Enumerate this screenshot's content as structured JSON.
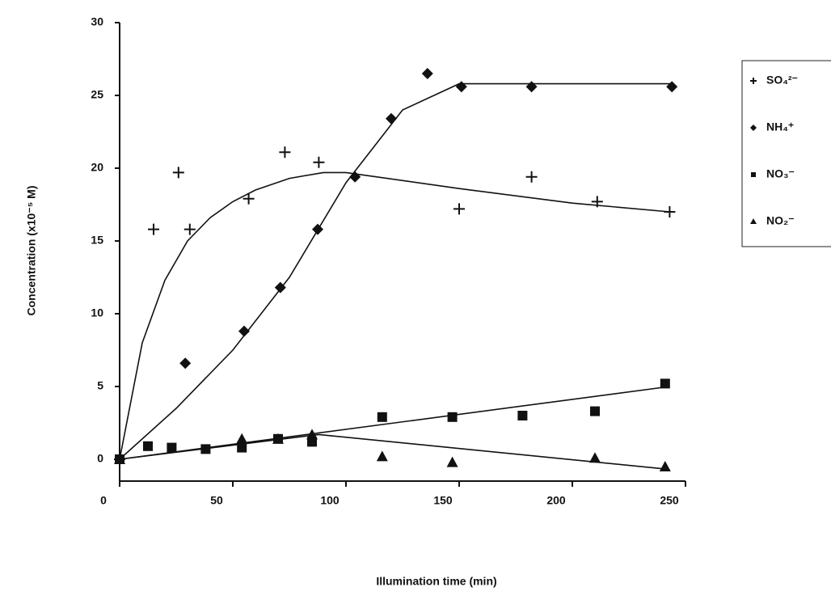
{
  "chart_data": {
    "type": "scatter",
    "x_label": "Illumination time (min)",
    "y_label": "Concentration (x10⁻⁵ M)",
    "xlim": [
      0,
      250
    ],
    "xticks": [
      0,
      50,
      100,
      150,
      200,
      250
    ],
    "ylim": [
      -1.5,
      30
    ],
    "yticks": [
      0,
      5,
      10,
      15,
      20,
      25,
      30
    ],
    "legend": "right",
    "series": [
      {
        "name": "SO₄²⁻",
        "color": "#111111",
        "marker": "plus",
        "x": [
          0,
          15,
          26,
          31,
          57,
          73,
          88,
          150,
          182,
          211,
          243
        ],
        "values": [
          0,
          15.8,
          19.7,
          15.8,
          17.9,
          21.1,
          20.4,
          17.2,
          19.4,
          17.7,
          17.0
        ],
        "fit_x": [
          0,
          10,
          20,
          30,
          40,
          50,
          60,
          75,
          90,
          100,
          150,
          200,
          243
        ],
        "fit_values": [
          0,
          8,
          12.3,
          15,
          16.6,
          17.7,
          18.5,
          19.3,
          19.7,
          19.7,
          18.6,
          17.6,
          17.0
        ]
      },
      {
        "name": "NH₄⁺",
        "color": "#111111",
        "marker": "diamond",
        "x": [
          0,
          29,
          55,
          71,
          87.5,
          104,
          120,
          136,
          151,
          182,
          244
        ],
        "values": [
          0,
          6.6,
          8.8,
          11.8,
          15.8,
          19.4,
          23.4,
          26.5,
          25.6,
          25.6,
          25.6
        ],
        "fit_x": [
          0,
          25,
          50,
          75,
          100,
          125,
          150,
          244
        ],
        "fit_values": [
          0,
          3.5,
          7.5,
          12.5,
          19,
          24,
          25.8,
          25.8
        ]
      },
      {
        "name": "NO₃⁻",
        "color": "#111111",
        "marker": "square",
        "x": [
          0,
          12.5,
          23,
          38,
          54,
          70,
          85,
          116,
          147,
          178,
          210,
          241
        ],
        "values": [
          0,
          0.9,
          0.8,
          0.7,
          0.8,
          1.4,
          1.2,
          2.9,
          2.9,
          3.0,
          3.3,
          5.2
        ],
        "fit_x": [
          0,
          243
        ],
        "fit_values": [
          0,
          5.0
        ]
      },
      {
        "name": "NO₂⁻",
        "color": "#111111",
        "marker": "triangle",
        "x": [
          0,
          54,
          70,
          85,
          116,
          147,
          210,
          241
        ],
        "values": [
          0,
          1.4,
          1.4,
          1.7,
          0.2,
          -0.2,
          0.1,
          -0.5
        ],
        "fit_x": [
          0,
          88,
          243
        ],
        "fit_values": [
          0,
          1.7,
          -0.7
        ]
      }
    ]
  }
}
